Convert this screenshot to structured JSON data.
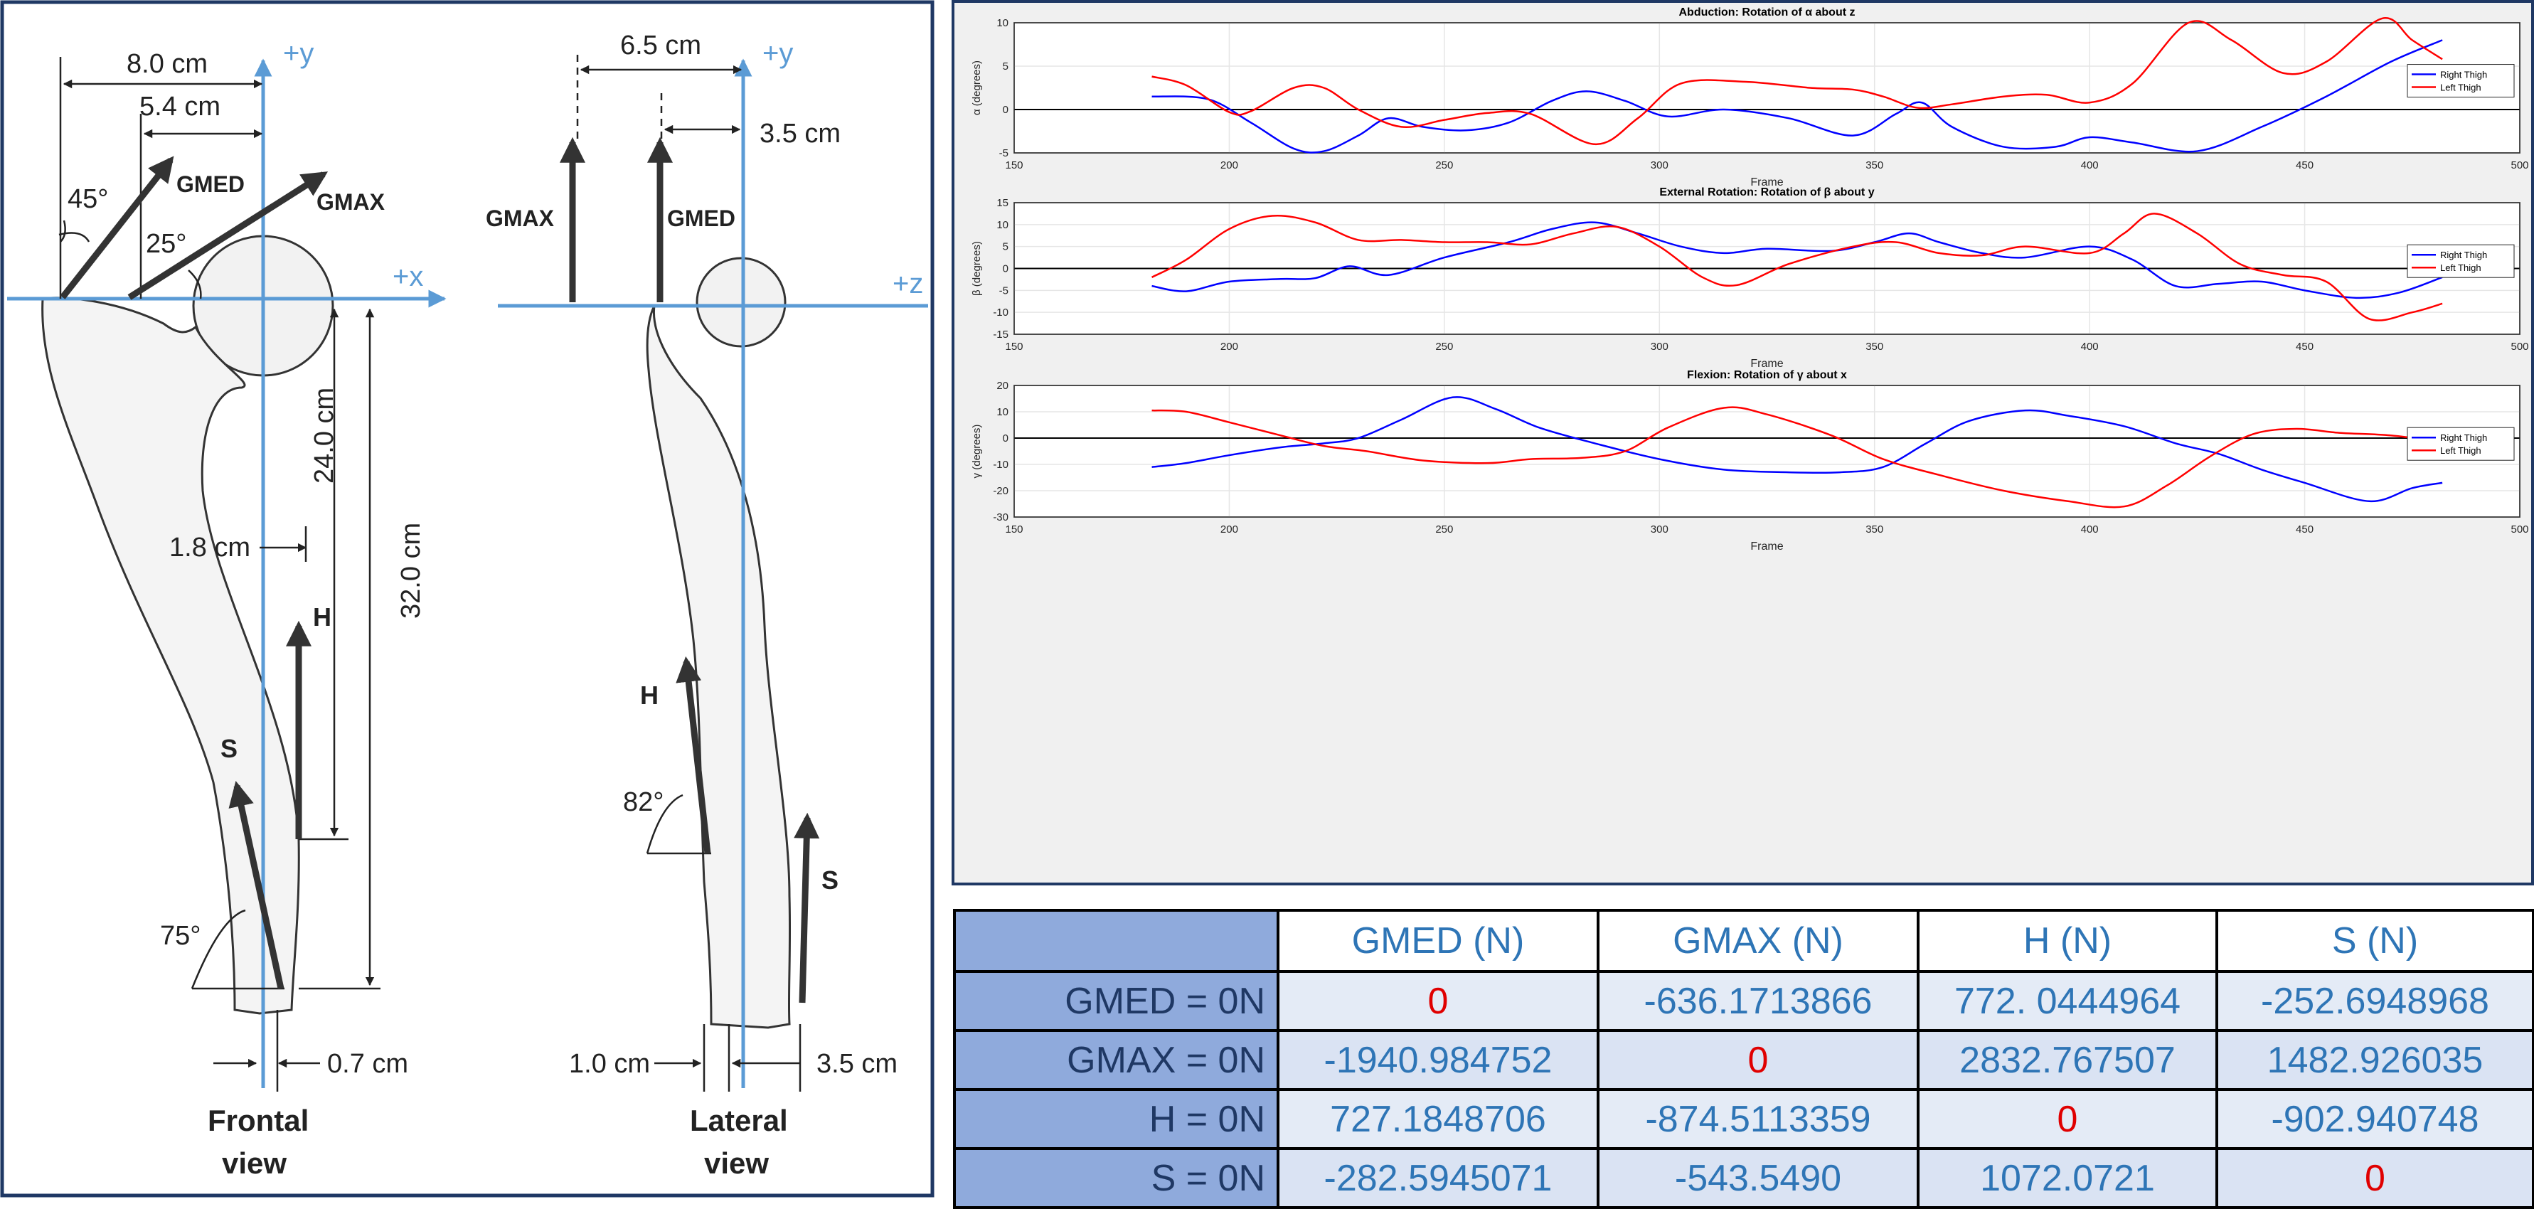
{
  "diagram": {
    "frontal": {
      "axis_y": "+y",
      "axis_x": "+x",
      "dims": {
        "d80": "8.0 cm",
        "d54": "5.4 cm",
        "d240": "24.0 cm",
        "d320": "32.0 cm",
        "d18": "1.8 cm",
        "d07": "0.7 cm"
      },
      "angles": {
        "a45": "45°",
        "a25": "25°",
        "a75": "75°"
      },
      "forces": {
        "gmed": "GMED",
        "gmax": "GMAX",
        "h": "H",
        "s": "S"
      },
      "caption_line1": "Frontal",
      "caption_line2": "view"
    },
    "lateral": {
      "axis_y": "+y",
      "axis_z": "+z",
      "dims": {
        "d65": "6.5 cm",
        "d35top": "3.5 cm",
        "d10": "1.0 cm",
        "d35bot": "3.5 cm"
      },
      "angles": {
        "a82": "82°"
      },
      "forces": {
        "gmax": "GMAX",
        "gmed": "GMED",
        "h": "H",
        "s": "S"
      },
      "caption_line1": "Lateral",
      "caption_line2": "view"
    }
  },
  "chart_data": [
    {
      "type": "line",
      "title": "Abduction: Rotation of α about z",
      "xlabel": "Frame",
      "ylabel": "α (degrees)",
      "xlim": [
        150,
        500
      ],
      "ylim": [
        -5,
        10
      ],
      "xticks": [
        150,
        200,
        250,
        300,
        350,
        400,
        450,
        500
      ],
      "yticks": [
        -5,
        0,
        5,
        10
      ],
      "grid": true,
      "legend": "right",
      "series": [
        {
          "name": "Right Thigh",
          "color": "#0000ff",
          "x": [
            182,
            195,
            205,
            215,
            222,
            230,
            237,
            245,
            255,
            265,
            275,
            283,
            292,
            302,
            315,
            330,
            345,
            355,
            361,
            368,
            380,
            392,
            400,
            410,
            425,
            440,
            455,
            470,
            482
          ],
          "y": [
            1.5,
            1.2,
            -1.5,
            -4.5,
            -4.8,
            -3.0,
            -1.0,
            -2.0,
            -2.4,
            -1.5,
            1.0,
            2.1,
            1.0,
            -0.8,
            0.0,
            -1.0,
            -3.0,
            -0.5,
            0.8,
            -2.0,
            -4.3,
            -4.3,
            -3.2,
            -3.8,
            -4.8,
            -2.0,
            1.5,
            5.5,
            8.0
          ]
        },
        {
          "name": "Left Thigh",
          "color": "#ff0000",
          "x": [
            182,
            190,
            200,
            205,
            215,
            222,
            230,
            240,
            250,
            260,
            270,
            285,
            295,
            305,
            320,
            335,
            345,
            352,
            360,
            368,
            380,
            390,
            400,
            410,
            423,
            433,
            445,
            455,
            468,
            475,
            482
          ],
          "y": [
            3.8,
            2.8,
            -0.3,
            -0.2,
            2.5,
            2.5,
            0.0,
            -2.0,
            -1.2,
            -0.4,
            -0.5,
            -4.0,
            -1.0,
            3.0,
            3.2,
            2.5,
            2.3,
            1.5,
            0.2,
            0.6,
            1.5,
            1.7,
            0.8,
            3.0,
            10.0,
            8.0,
            4.2,
            5.5,
            10.5,
            8.0,
            5.8
          ]
        }
      ]
    },
    {
      "type": "line",
      "title": "External Rotation: Rotation of β about y",
      "xlabel": "Frame",
      "ylabel": "β (degrees)",
      "xlim": [
        150,
        500
      ],
      "ylim": [
        -15,
        15
      ],
      "xticks": [
        150,
        200,
        250,
        300,
        350,
        400,
        450,
        500
      ],
      "yticks": [
        -15,
        -10,
        -5,
        0,
        5,
        10,
        15
      ],
      "grid": true,
      "legend": "right",
      "series": [
        {
          "name": "Right Thigh",
          "color": "#0000ff",
          "x": [
            182,
            190,
            200,
            212,
            220,
            228,
            237,
            250,
            265,
            275,
            285,
            295,
            305,
            315,
            325,
            340,
            350,
            358,
            365,
            375,
            385,
            400,
            410,
            420,
            430,
            440,
            450,
            462,
            472,
            482
          ],
          "y": [
            -4.0,
            -5.2,
            -3.0,
            -2.4,
            -2.2,
            0.5,
            -1.5,
            2.5,
            6.0,
            9.0,
            10.5,
            8.0,
            5.0,
            3.5,
            4.5,
            4.0,
            6.0,
            8.0,
            6.0,
            3.5,
            2.5,
            5.0,
            2.0,
            -4.0,
            -3.5,
            -3.0,
            -5.0,
            -6.7,
            -5.5,
            -2.0
          ]
        },
        {
          "name": "Left Thigh",
          "color": "#ff0000",
          "x": [
            182,
            190,
            200,
            210,
            220,
            230,
            240,
            250,
            260,
            270,
            280,
            290,
            300,
            310,
            318,
            330,
            345,
            355,
            365,
            375,
            385,
            400,
            408,
            415,
            425,
            435,
            445,
            455,
            465,
            475,
            482
          ],
          "y": [
            -2.0,
            2.0,
            9.0,
            12.0,
            10.5,
            6.5,
            6.5,
            6.0,
            6.0,
            5.5,
            8.0,
            9.5,
            5.0,
            -2.0,
            -3.8,
            1.0,
            5.0,
            6.0,
            3.5,
            3.0,
            5.0,
            3.5,
            8.0,
            12.5,
            8.0,
            1.0,
            -1.5,
            -3.0,
            -11.5,
            -10.0,
            -8.0
          ]
        }
      ]
    },
    {
      "type": "line",
      "title": "Flexion: Rotation of γ about x",
      "xlabel": "Frame",
      "ylabel": "γ (degrees)",
      "xlim": [
        150,
        500
      ],
      "ylim": [
        -30,
        20
      ],
      "xticks": [
        150,
        200,
        250,
        300,
        350,
        400,
        450,
        500
      ],
      "yticks": [
        -30,
        -20,
        -10,
        0,
        10,
        20
      ],
      "grid": true,
      "legend": "right",
      "series": [
        {
          "name": "Right Thigh",
          "color": "#0000ff",
          "x": [
            182,
            190,
            200,
            212,
            222,
            230,
            240,
            252,
            262,
            272,
            285,
            300,
            315,
            330,
            342,
            352,
            362,
            372,
            385,
            395,
            408,
            420,
            430,
            440,
            450,
            465,
            475,
            482
          ],
          "y": [
            -11.0,
            -9.5,
            -6.5,
            -3.5,
            -2.0,
            0.0,
            7.0,
            15.5,
            11.0,
            4.0,
            -2.0,
            -8.0,
            -12.0,
            -13.0,
            -13.0,
            -11.0,
            -2.0,
            6.5,
            10.5,
            8.5,
            4.5,
            -2.0,
            -6.0,
            -12.0,
            -17.0,
            -24.0,
            -19.0,
            -17.0
          ]
        },
        {
          "name": "Left Thigh",
          "color": "#ff0000",
          "x": [
            182,
            190,
            200,
            212,
            222,
            232,
            245,
            260,
            270,
            282,
            292,
            302,
            315,
            325,
            340,
            352,
            365,
            380,
            395,
            408,
            418,
            428,
            438,
            448,
            458,
            470,
            482
          ],
          "y": [
            10.5,
            10.0,
            6.0,
            1.0,
            -3.0,
            -5.0,
            -8.5,
            -9.5,
            -8.0,
            -7.5,
            -5.0,
            4.0,
            11.5,
            9.0,
            1.0,
            -8.0,
            -14.0,
            -20.0,
            -24.0,
            -26.0,
            -18.0,
            -7.0,
            1.5,
            3.5,
            2.0,
            1.0,
            -1.5
          ]
        }
      ]
    }
  ],
  "table": {
    "headers": [
      "",
      "GMED (N)",
      "GMAX (N)",
      "H (N)",
      "S (N)"
    ],
    "rows": [
      {
        "label": "GMED = 0N",
        "cells": [
          "0",
          "-636.1713866",
          "772. 0444964",
          "-252.6948968"
        ]
      },
      {
        "label": "GMAX = 0N",
        "cells": [
          "-1940.984752",
          "0",
          "2832.767507",
          "1482.926035"
        ]
      },
      {
        "label": "H = 0N",
        "cells": [
          "727.1848706",
          "-874.5113359",
          "0",
          "-902.940748"
        ]
      },
      {
        "label": "S = 0N",
        "cells": [
          "-282.5945071",
          "-543.5490",
          "1072.0721",
          "0"
        ]
      }
    ]
  }
}
